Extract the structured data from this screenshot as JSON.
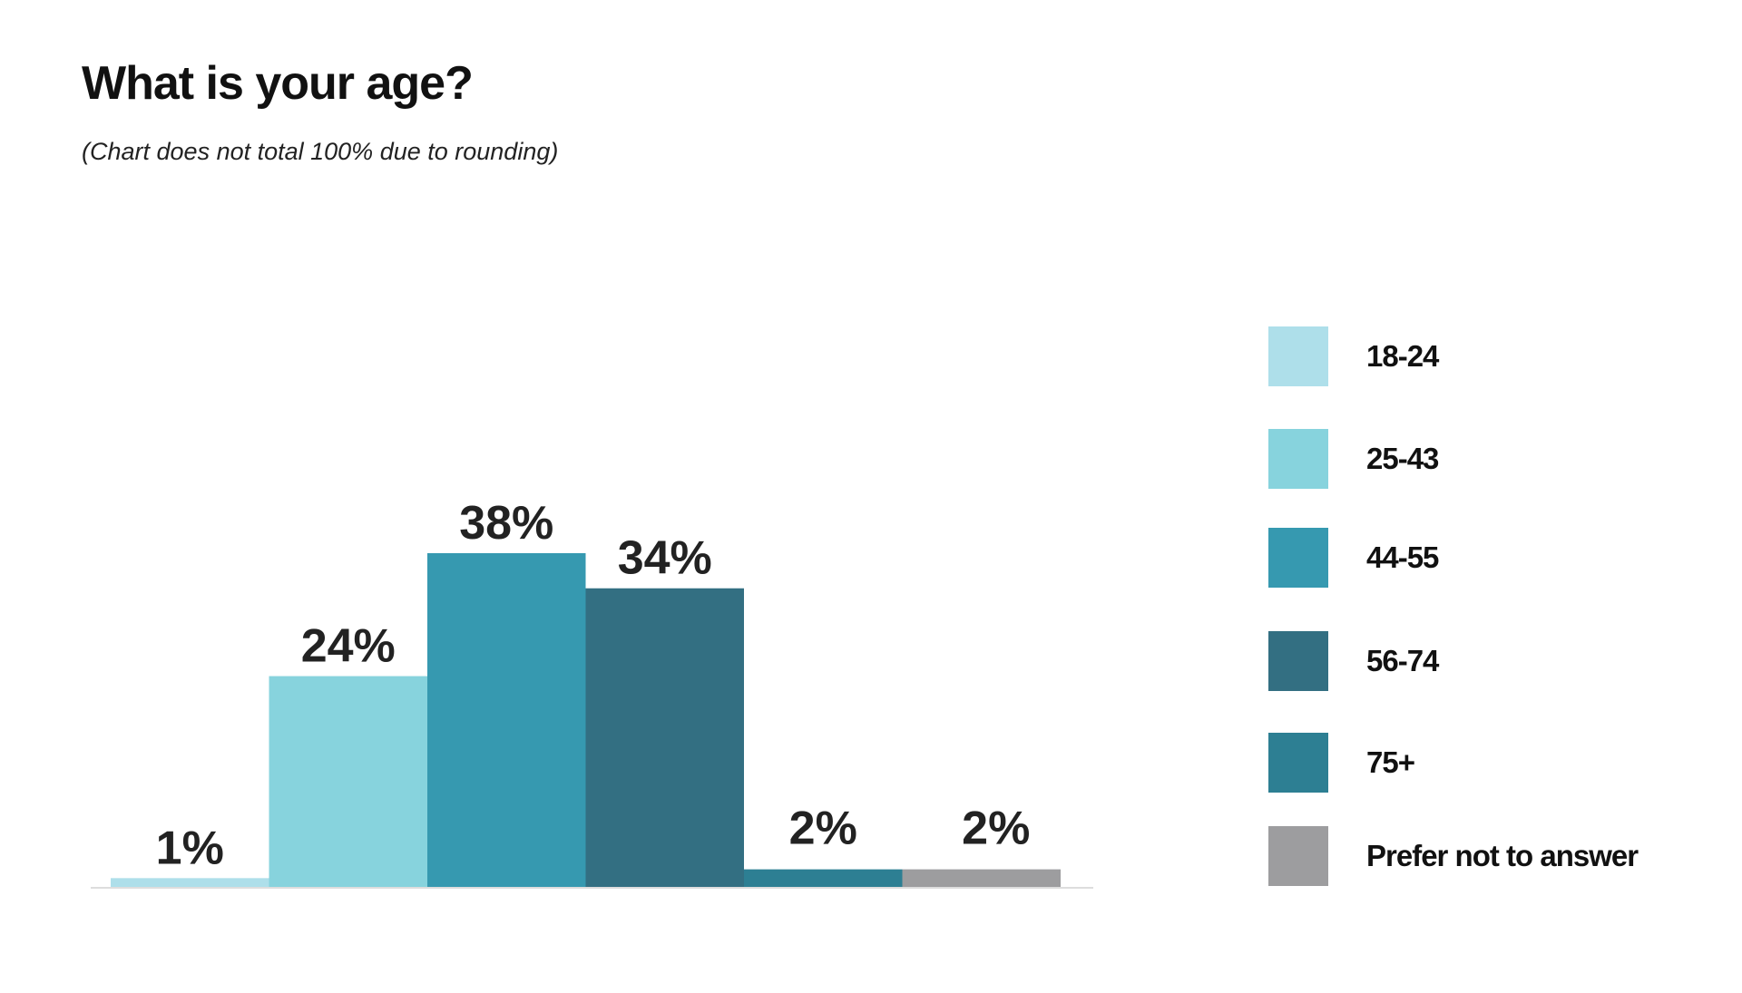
{
  "chart_data": {
    "type": "bar",
    "title": "What is your age?",
    "subtitle": "(Chart does not total 100% due to rounding)",
    "categories": [
      "18-24",
      "25-43",
      "44-55",
      "56-74",
      "75+",
      "Prefer not to answer"
    ],
    "values": [
      1,
      24,
      38,
      34,
      2,
      2
    ],
    "value_labels": [
      "1%",
      "24%",
      "38%",
      "34%",
      "2%",
      "2%"
    ],
    "colors": [
      "#aedfea",
      "#87d3dd",
      "#3699b0",
      "#336f82",
      "#2d7f93",
      "#9d9d9f"
    ],
    "xlabel": "",
    "ylabel": "",
    "ylim": [
      0,
      38
    ],
    "grid": false,
    "legend_position": "right"
  }
}
